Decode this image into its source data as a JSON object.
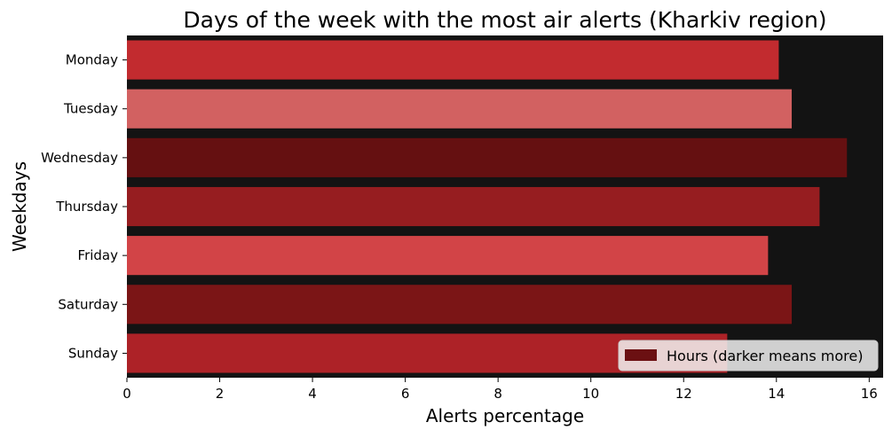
{
  "chart_data": {
    "type": "bar",
    "orientation": "horizontal",
    "title": "Days of the week with the most air alerts (Kharkiv region)",
    "xlabel": "Alerts percentage",
    "ylabel": "Weekdays",
    "categories": [
      "Monday",
      "Tuesday",
      "Wednesday",
      "Thursday",
      "Friday",
      "Saturday",
      "Sunday"
    ],
    "values": [
      14.05,
      14.33,
      15.52,
      14.93,
      13.82,
      14.33,
      12.94
    ],
    "bar_colors": [
      "#c22b2f",
      "#d26161",
      "#651011",
      "#961d20",
      "#d24447",
      "#7b1516",
      "#ad2227"
    ],
    "xlim": [
      0,
      16.3
    ],
    "xticks": [
      "0",
      "2",
      "4",
      "6",
      "8",
      "10",
      "12",
      "14",
      "16"
    ],
    "xtick_values": [
      0,
      2,
      4,
      6,
      8,
      10,
      12,
      14,
      16
    ],
    "grid": false,
    "background": "#131313",
    "legend": {
      "placement": "bottom-right",
      "label": "Hours (darker means more)",
      "swatch_color": "#6b1012"
    }
  }
}
